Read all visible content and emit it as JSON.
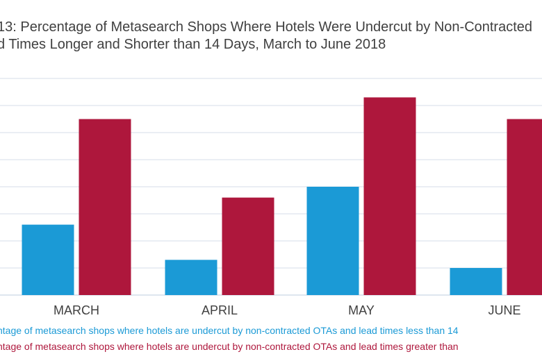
{
  "title_lines": [
    "13: Percentage of Metasearch Shops Where Hotels Were Undercut by Non-Contracted",
    "d Times Longer and Shorter than 14 Days, March to June 2018"
  ],
  "colors": {
    "series1": "#1B9AD6",
    "series2": "#AE173C",
    "grid": "#D4DEEA",
    "axis_text": "#404040"
  },
  "chart_data": {
    "type": "bar",
    "title": "13: Percentage of Metasearch Shops Where Hotels Were Undercut by Non-Contracted ... d Times Longer and Shorter than 14 Days, March to June 2018",
    "categories": [
      "MARCH",
      "APRIL",
      "MAY",
      "JUNE"
    ],
    "series": [
      {
        "name": "ntage of metasearch shops where hotels are undercut by non-contracted OTAs and lead times less than 14",
        "values": [
          13,
          6.5,
          20,
          5
        ]
      },
      {
        "name": "ntage of metasearch shops where hotels are undercut by non-contracted OTAs and lead times greater than",
        "values": [
          32.5,
          18,
          36.5,
          32.5
        ]
      }
    ],
    "ylim": [
      0,
      40
    ],
    "ytick_step": 5,
    "grid": true,
    "xlabel": "",
    "ylabel": "",
    "legend_position": "bottom"
  }
}
